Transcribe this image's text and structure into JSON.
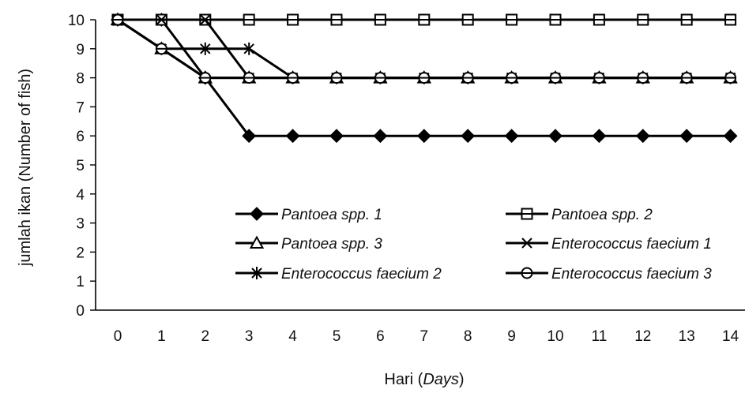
{
  "chart_data": {
    "type": "line",
    "xlabel_prefix": "Hari (",
    "xlabel_italic": "Days",
    "xlabel_suffix": ")",
    "ylabel": "jumlah ikan (Number of fish)",
    "x": [
      0,
      1,
      2,
      3,
      4,
      5,
      6,
      7,
      8,
      9,
      10,
      11,
      12,
      13,
      14
    ],
    "xlim": [
      0,
      14
    ],
    "ylim": [
      0,
      10
    ],
    "yticks": [
      0,
      1,
      2,
      3,
      4,
      5,
      6,
      7,
      8,
      9,
      10
    ],
    "grid": false,
    "legend_placement": "lower-right",
    "series": [
      {
        "name": "Pantoea spp. 1",
        "marker": "diamond",
        "values": [
          10,
          10,
          8,
          6,
          6,
          6,
          6,
          6,
          6,
          6,
          6,
          6,
          6,
          6,
          6
        ]
      },
      {
        "name": "Pantoea spp. 2",
        "marker": "square",
        "values": [
          10,
          10,
          10,
          10,
          10,
          10,
          10,
          10,
          10,
          10,
          10,
          10,
          10,
          10,
          10
        ]
      },
      {
        "name": "Pantoea spp. 3",
        "marker": "triangle",
        "values": [
          10,
          9,
          8,
          8,
          8,
          8,
          8,
          8,
          8,
          8,
          8,
          8,
          8,
          8,
          8
        ]
      },
      {
        "name": "Enterococcus faecium 1",
        "marker": "x",
        "values": [
          10,
          10,
          10,
          8,
          8,
          8,
          8,
          8,
          8,
          8,
          8,
          8,
          8,
          8,
          8
        ]
      },
      {
        "name": "Enterococcus faecium 2",
        "marker": "asterisk",
        "values": [
          10,
          9,
          9,
          9,
          8,
          8,
          8,
          8,
          8,
          8,
          8,
          8,
          8,
          8,
          8
        ]
      },
      {
        "name": "Enterococcus faecium 3",
        "marker": "circle",
        "values": [
          10,
          9,
          8,
          8,
          8,
          8,
          8,
          8,
          8,
          8,
          8,
          8,
          8,
          8,
          8
        ]
      }
    ],
    "line_color": "#000000"
  }
}
